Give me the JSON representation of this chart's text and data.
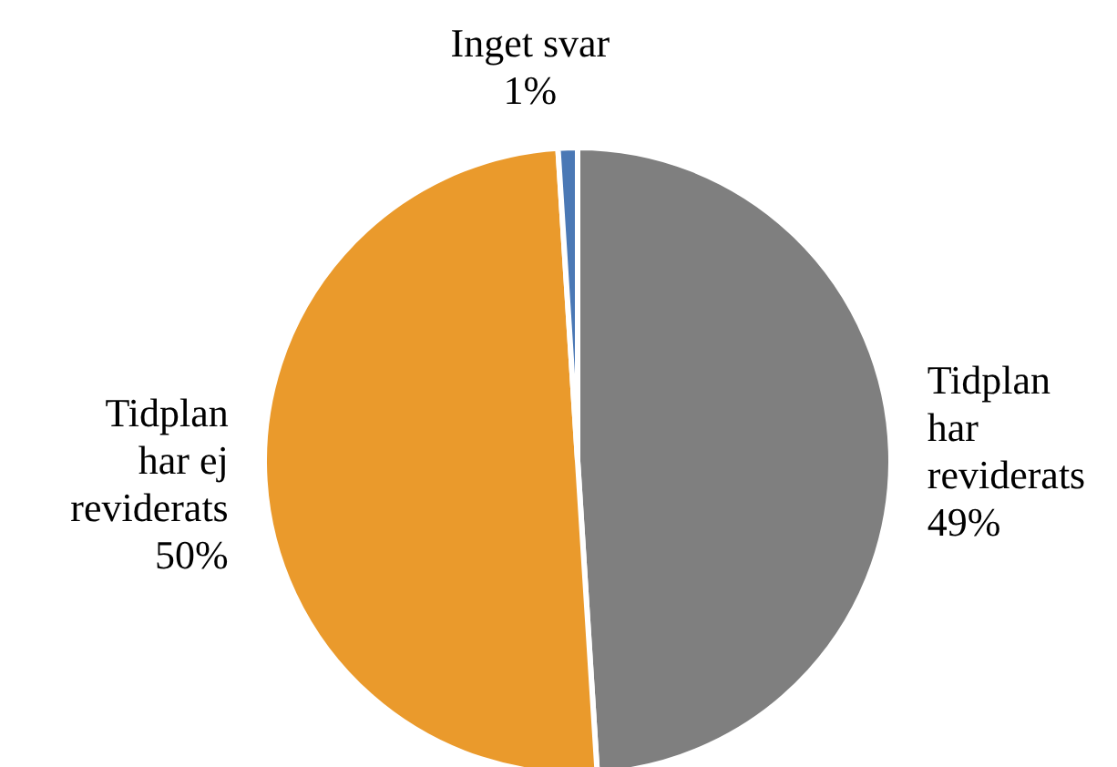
{
  "chart_data": {
    "type": "pie",
    "categories": [
      "Tidplan har reviderats",
      "Tidplan har ej reviderats",
      "Inget svar"
    ],
    "values": [
      49,
      50,
      1
    ],
    "value_labels": [
      "49%",
      "50%",
      "1%"
    ],
    "colors": [
      "#7f7f7f",
      "#ea9a2c",
      "#4a78b5"
    ],
    "legend": false
  }
}
